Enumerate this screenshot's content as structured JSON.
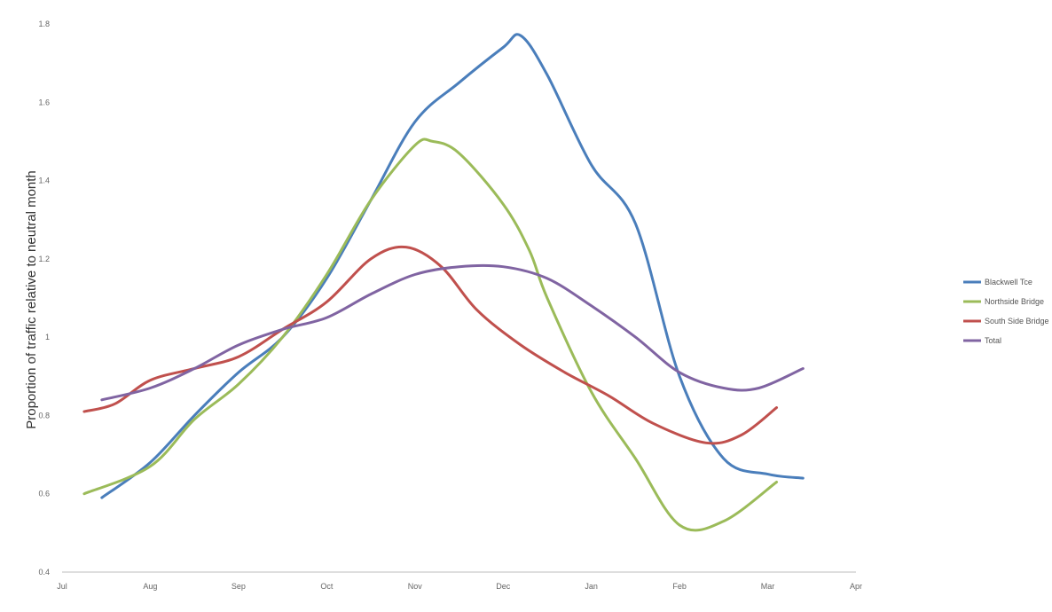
{
  "chart_data": {
    "type": "line",
    "title": "",
    "xlabel": "",
    "ylabel": "Proportion of traffic relative to neutral month",
    "categories": [
      "Jul",
      "Aug",
      "Sep",
      "Oct",
      "Nov",
      "Dec",
      "Jan",
      "Feb",
      "Mar",
      "Apr"
    ],
    "x_ticks": [
      "Jul",
      "Aug",
      "Sep",
      "Oct",
      "Nov",
      "Dec",
      "Jan",
      "Feb",
      "Mar",
      "Apr"
    ],
    "ylim": [
      0.4,
      1.8
    ],
    "y_ticks": [
      "0.4",
      "0.6",
      "0.8",
      "1",
      "1.2",
      "1.4",
      "1.6",
      "1.8"
    ],
    "grid": false,
    "legend_position": "right",
    "series": [
      {
        "name": "Blackwell Tce",
        "color": "#4a7ebb",
        "points": [
          [
            0.45,
            0.59
          ],
          [
            1.0,
            0.68
          ],
          [
            1.5,
            0.8
          ],
          [
            2.0,
            0.91
          ],
          [
            2.5,
            1.0
          ],
          [
            3.0,
            1.15
          ],
          [
            3.5,
            1.35
          ],
          [
            4.0,
            1.55
          ],
          [
            4.5,
            1.65
          ],
          [
            5.0,
            1.74
          ],
          [
            5.2,
            1.77
          ],
          [
            5.5,
            1.67
          ],
          [
            6.0,
            1.44
          ],
          [
            6.5,
            1.29
          ],
          [
            7.0,
            0.9
          ],
          [
            7.5,
            0.69
          ],
          [
            8.0,
            0.65
          ],
          [
            8.4,
            0.64
          ]
        ]
      },
      {
        "name": "Northside Bridge",
        "color": "#9bbb59",
        "points": [
          [
            0.25,
            0.6
          ],
          [
            1.0,
            0.67
          ],
          [
            1.5,
            0.79
          ],
          [
            2.0,
            0.88
          ],
          [
            2.5,
            1.0
          ],
          [
            3.0,
            1.16
          ],
          [
            3.5,
            1.35
          ],
          [
            4.0,
            1.49
          ],
          [
            4.2,
            1.5
          ],
          [
            4.5,
            1.47
          ],
          [
            5.0,
            1.34
          ],
          [
            5.3,
            1.22
          ],
          [
            5.5,
            1.1
          ],
          [
            6.0,
            0.86
          ],
          [
            6.5,
            0.69
          ],
          [
            7.0,
            0.52
          ],
          [
            7.5,
            0.53
          ],
          [
            8.1,
            0.63
          ]
        ]
      },
      {
        "name": "South Side Bridge",
        "color": "#c0504d",
        "points": [
          [
            0.25,
            0.81
          ],
          [
            0.6,
            0.83
          ],
          [
            1.0,
            0.89
          ],
          [
            1.5,
            0.92
          ],
          [
            2.0,
            0.95
          ],
          [
            2.5,
            1.02
          ],
          [
            3.0,
            1.09
          ],
          [
            3.5,
            1.2
          ],
          [
            3.9,
            1.23
          ],
          [
            4.3,
            1.18
          ],
          [
            4.7,
            1.07
          ],
          [
            5.2,
            0.98
          ],
          [
            5.7,
            0.91
          ],
          [
            6.2,
            0.85
          ],
          [
            6.7,
            0.78
          ],
          [
            7.3,
            0.73
          ],
          [
            7.7,
            0.75
          ],
          [
            8.1,
            0.82
          ]
        ]
      },
      {
        "name": "Total",
        "color": "#8064a2",
        "points": [
          [
            0.45,
            0.84
          ],
          [
            1.0,
            0.87
          ],
          [
            1.5,
            0.92
          ],
          [
            2.0,
            0.98
          ],
          [
            2.5,
            1.02
          ],
          [
            3.0,
            1.05
          ],
          [
            3.5,
            1.11
          ],
          [
            4.0,
            1.16
          ],
          [
            4.5,
            1.18
          ],
          [
            5.0,
            1.18
          ],
          [
            5.5,
            1.15
          ],
          [
            6.0,
            1.08
          ],
          [
            6.5,
            1.0
          ],
          [
            7.0,
            0.91
          ],
          [
            7.5,
            0.87
          ],
          [
            7.9,
            0.87
          ],
          [
            8.4,
            0.92
          ]
        ]
      }
    ]
  }
}
